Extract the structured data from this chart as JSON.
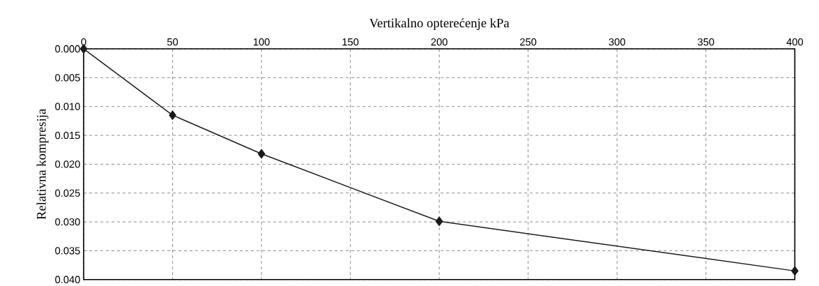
{
  "chart_data": {
    "type": "line",
    "xlabel": "Vertikalno opterećenje   kPa",
    "ylabel": "Relativna kompresija",
    "x": [
      0,
      50,
      100,
      200,
      400
    ],
    "series": [
      {
        "color": "#1a1a1a",
        "values": [
          0.0,
          0.0115,
          0.0182,
          0.0299,
          0.0385
        ]
      }
    ],
    "xlim": [
      0,
      400
    ],
    "xticks": [
      0,
      50,
      100,
      150,
      200,
      250,
      300,
      350,
      400
    ],
    "ylim": [
      0.04,
      0.0
    ],
    "yticks": [
      {
        "value": 0.0,
        "label": "0.000"
      },
      {
        "value": 0.005,
        "label": "0.005"
      },
      {
        "value": 0.01,
        "label": "0.010"
      },
      {
        "value": 0.015,
        "label": "0.015"
      },
      {
        "value": 0.02,
        "label": "0.020"
      },
      {
        "value": 0.025,
        "label": "0.025"
      },
      {
        "value": 0.03,
        "label": "0.030"
      },
      {
        "value": 0.035,
        "label": "0.035"
      },
      {
        "value": 0.04,
        "label": "0.040"
      }
    ],
    "grid": true,
    "marker": "diamond",
    "line_style": "solid"
  }
}
